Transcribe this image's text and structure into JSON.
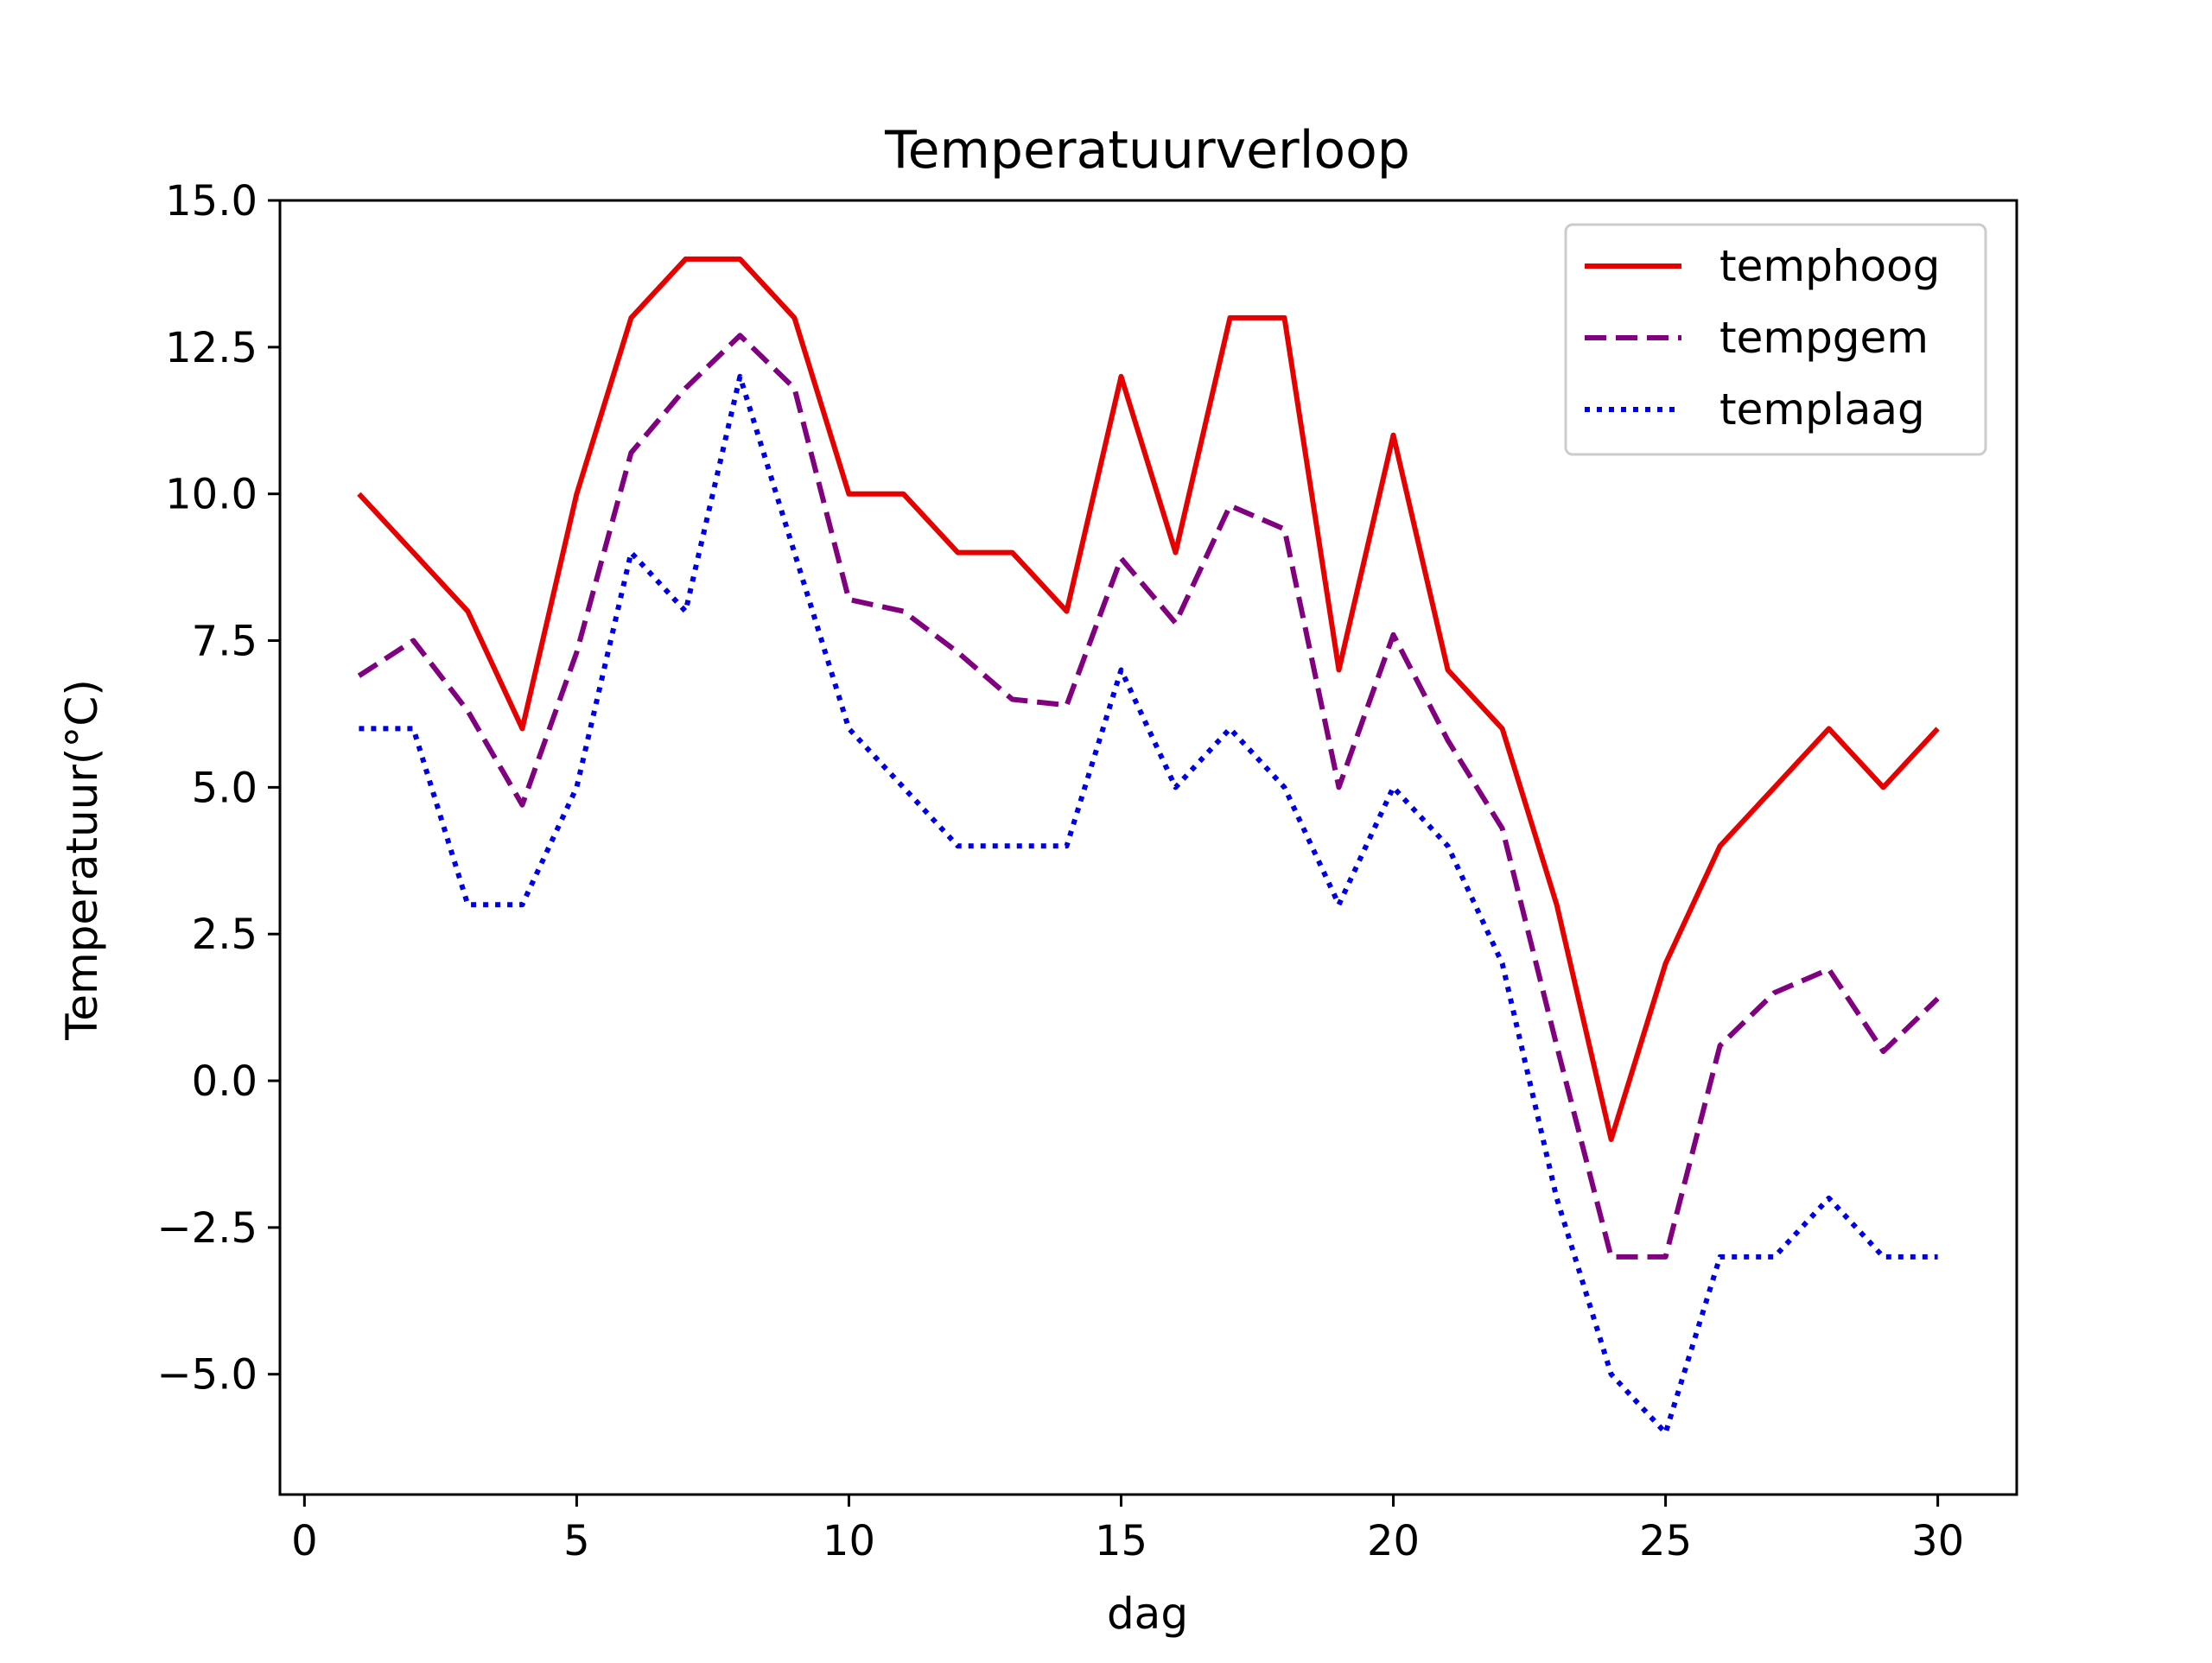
{
  "chart_data": {
    "type": "line",
    "title": "Temperatuurverloop",
    "xlabel": "dag",
    "ylabel": "Temperatuur(°C)",
    "x": [
      1,
      2,
      3,
      4,
      5,
      6,
      7,
      8,
      9,
      10,
      11,
      12,
      13,
      14,
      15,
      16,
      17,
      18,
      19,
      20,
      21,
      22,
      23,
      24,
      25,
      26,
      27,
      28,
      29,
      30
    ],
    "xlim": [
      -0.45,
      31.45
    ],
    "ylim": [
      -7.05,
      15.0
    ],
    "xticks": [
      0,
      5,
      10,
      15,
      20,
      25,
      30
    ],
    "xtick_labels": [
      "0",
      "5",
      "10",
      "15",
      "20",
      "25",
      "30"
    ],
    "yticks": [
      -5.0,
      -2.5,
      0.0,
      2.5,
      5.0,
      7.5,
      10.0,
      12.5,
      15.0
    ],
    "ytick_labels": [
      "−5.0",
      "−2.5",
      "0.0",
      "2.5",
      "5.0",
      "7.5",
      "10.0",
      "12.5",
      "15.0"
    ],
    "grid": false,
    "legend_position": "top-right",
    "series": [
      {
        "name": "temphoog",
        "color": "#e60000",
        "style": "solid",
        "values": [
          10,
          9,
          8,
          6,
          10,
          13,
          14,
          14,
          13,
          10,
          10,
          9,
          9,
          8,
          12,
          9,
          13,
          13,
          7,
          11,
          7,
          6,
          3,
          -1,
          2,
          4,
          5,
          6,
          5,
          6
        ]
      },
      {
        "name": "tempgem",
        "color": "#800080",
        "style": "dashed",
        "values": [
          6.9,
          7.5,
          6.3,
          4.7,
          7.3,
          10.7,
          11.8,
          12.7,
          11.8,
          8.2,
          8.0,
          7.3,
          6.5,
          6.4,
          8.9,
          7.8,
          9.8,
          9.4,
          5.0,
          7.6,
          5.8,
          4.3,
          0.6,
          -3.0,
          -3.0,
          0.6,
          1.5,
          1.9,
          0.5,
          1.4
        ]
      },
      {
        "name": "templaag",
        "color": "#0000e6",
        "style": "dotted",
        "values": [
          6,
          6,
          3,
          3,
          5,
          9,
          8,
          12,
          9,
          6,
          5,
          4,
          4,
          4,
          7,
          5,
          6,
          5,
          3,
          5,
          4,
          2,
          -2,
          -5,
          -6,
          -3,
          -3,
          -2,
          -3,
          -3
        ]
      }
    ]
  }
}
